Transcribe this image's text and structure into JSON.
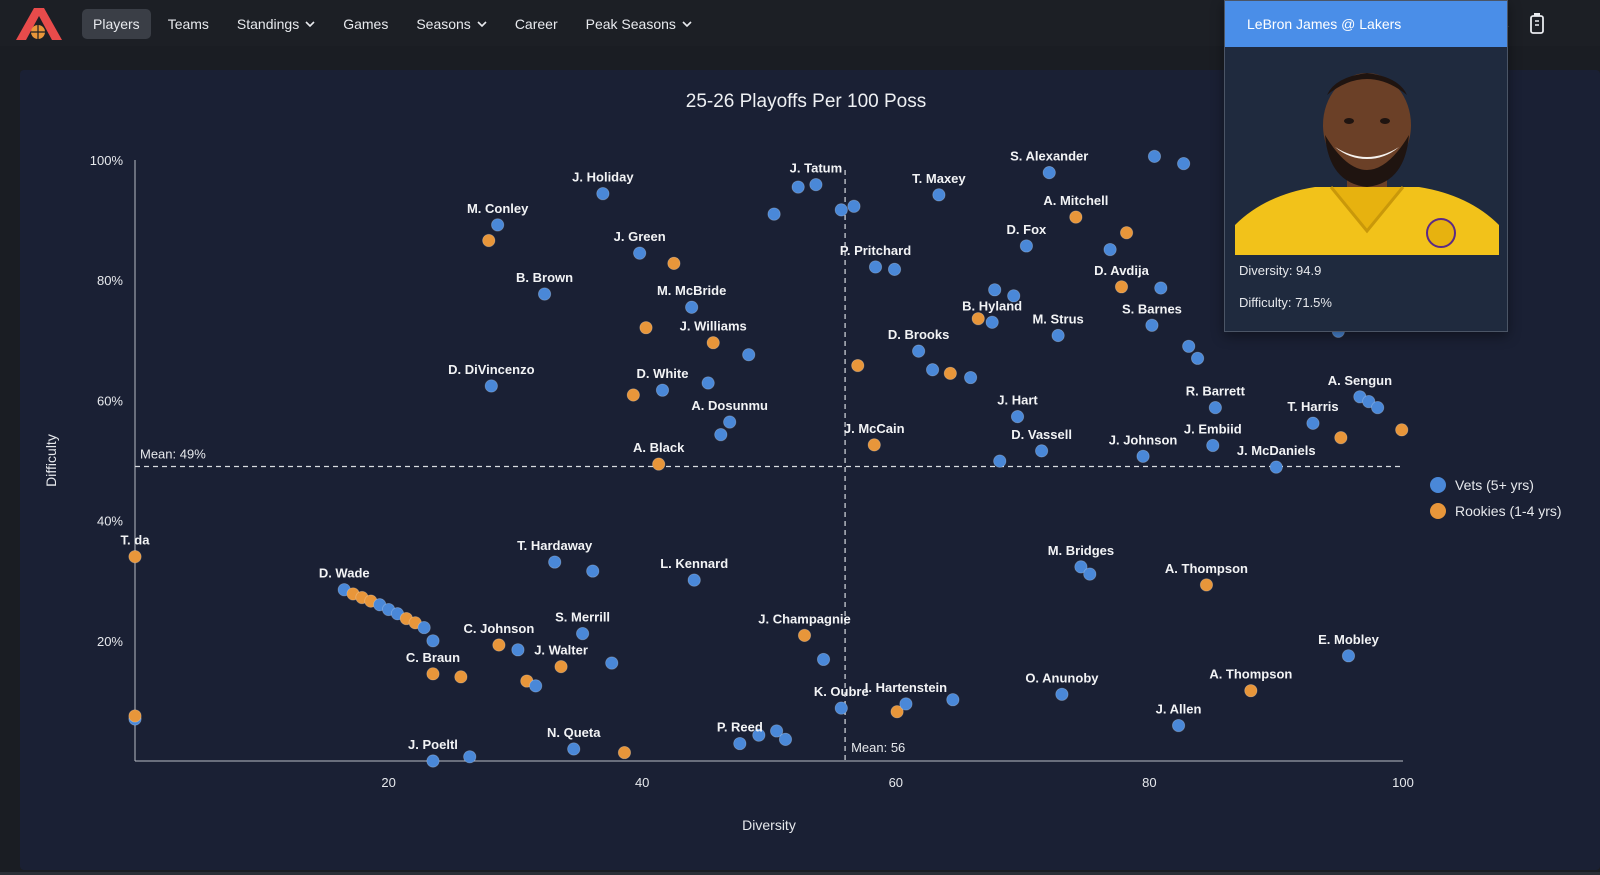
{
  "nav": {
    "items": [
      {
        "label": "Players",
        "active": true,
        "dropdown": false
      },
      {
        "label": "Teams",
        "active": false,
        "dropdown": false
      },
      {
        "label": "Standings",
        "active": false,
        "dropdown": true
      },
      {
        "label": "Games",
        "active": false,
        "dropdown": false
      },
      {
        "label": "Seasons",
        "active": false,
        "dropdown": true
      },
      {
        "label": "Career",
        "active": false,
        "dropdown": false
      },
      {
        "label": "Peak Seasons",
        "active": false,
        "dropdown": true
      }
    ],
    "icons": [
      "logo-icon",
      "moon-icon",
      "battery-icon"
    ]
  },
  "tooltip": {
    "title": "LeBron James @ Lakers",
    "diversity_line": "Diversity: 94.9",
    "difficulty_line": "Difficulty: 71.5%",
    "image_icon": "player-photo"
  },
  "legend": [
    {
      "label": "Vets (5+ yrs)",
      "color": "#4a88d8"
    },
    {
      "label": "Rookies (1-4 yrs)",
      "color": "#e8963a"
    }
  ],
  "chart_data": {
    "type": "scatter",
    "title": "25-26 Playoffs Per 100 Poss",
    "xlabel": "Diversity",
    "ylabel": "Difficulty",
    "xlim": [
      0,
      100
    ],
    "ylim": [
      0,
      100
    ],
    "xticks": [
      20,
      40,
      60,
      80,
      100
    ],
    "yticks": [
      20,
      40,
      60,
      80,
      100
    ],
    "ytick_suffix": "%",
    "mean_x": 56,
    "mean_y": 49,
    "mean_x_label": "Mean: 56",
    "mean_y_label": "Mean: 49%",
    "colors": {
      "vet": "#4a88d8",
      "rookie": "#e8963a"
    },
    "points": [
      {
        "x": 0,
        "y": 34,
        "t": "r",
        "label": "T. da"
      },
      {
        "x": 0,
        "y": 7,
        "t": "v",
        "label": ""
      },
      {
        "x": 0,
        "y": 7.5,
        "t": "r",
        "label": ""
      },
      {
        "x": 16.5,
        "y": 28.5,
        "t": "v",
        "label": "D. Wade"
      },
      {
        "x": 17.2,
        "y": 27.8,
        "t": "r",
        "label": ""
      },
      {
        "x": 17.9,
        "y": 27.2,
        "t": "r",
        "label": ""
      },
      {
        "x": 18.6,
        "y": 26.6,
        "t": "r",
        "label": ""
      },
      {
        "x": 19.3,
        "y": 26.0,
        "t": "v",
        "label": ""
      },
      {
        "x": 20.0,
        "y": 25.2,
        "t": "v",
        "label": ""
      },
      {
        "x": 20.7,
        "y": 24.5,
        "t": "v",
        "label": ""
      },
      {
        "x": 21.4,
        "y": 23.7,
        "t": "r",
        "label": ""
      },
      {
        "x": 22.1,
        "y": 23.0,
        "t": "r",
        "label": ""
      },
      {
        "x": 22.8,
        "y": 22.2,
        "t": "v",
        "label": ""
      },
      {
        "x": 23.5,
        "y": 20.0,
        "t": "v",
        "label": ""
      },
      {
        "x": 23.5,
        "y": 14.5,
        "t": "r",
        "label": "C. Braun"
      },
      {
        "x": 25.7,
        "y": 14.0,
        "t": "r",
        "label": ""
      },
      {
        "x": 28.7,
        "y": 19.3,
        "t": "r",
        "label": "C. Johnson"
      },
      {
        "x": 30.2,
        "y": 18.5,
        "t": "v",
        "label": ""
      },
      {
        "x": 30.9,
        "y": 13.3,
        "t": "r",
        "label": ""
      },
      {
        "x": 31.6,
        "y": 12.5,
        "t": "v",
        "label": ""
      },
      {
        "x": 33.6,
        "y": 15.7,
        "t": "r",
        "label": "J. Walter"
      },
      {
        "x": 35.3,
        "y": 21.2,
        "t": "v",
        "label": "S. Merrill"
      },
      {
        "x": 37.6,
        "y": 16.3,
        "t": "v",
        "label": ""
      },
      {
        "x": 33.1,
        "y": 33.1,
        "t": "v",
        "label": "T. Hardaway"
      },
      {
        "x": 36.1,
        "y": 31.6,
        "t": "v",
        "label": ""
      },
      {
        "x": 44.1,
        "y": 30.1,
        "t": "v",
        "label": "L. Kennard"
      },
      {
        "x": 23.5,
        "y": 0,
        "t": "v",
        "label": "J. Poeltl"
      },
      {
        "x": 26.4,
        "y": 0.7,
        "t": "v",
        "label": ""
      },
      {
        "x": 34.6,
        "y": 2.0,
        "t": "v",
        "label": "N. Queta"
      },
      {
        "x": 38.6,
        "y": 1.4,
        "t": "r",
        "label": ""
      },
      {
        "x": 47.7,
        "y": 2.9,
        "t": "v",
        "label": "P. Reed"
      },
      {
        "x": 49.2,
        "y": 4.3,
        "t": "v",
        "label": ""
      },
      {
        "x": 50.6,
        "y": 5.0,
        "t": "v",
        "label": ""
      },
      {
        "x": 51.3,
        "y": 3.6,
        "t": "v",
        "label": ""
      },
      {
        "x": 52.8,
        "y": 20.9,
        "t": "r",
        "label": "J. Champagnie"
      },
      {
        "x": 54.3,
        "y": 16.9,
        "t": "v",
        "label": ""
      },
      {
        "x": 55.7,
        "y": 8.8,
        "t": "v",
        "label": "K. Oubre"
      },
      {
        "x": 60.1,
        "y": 8.2,
        "t": "r",
        "label": ""
      },
      {
        "x": 60.8,
        "y": 9.5,
        "t": "v",
        "label": "I. Hartenstein"
      },
      {
        "x": 64.5,
        "y": 10.2,
        "t": "v",
        "label": ""
      },
      {
        "x": 73.1,
        "y": 11.1,
        "t": "v",
        "label": "O. Anunoby"
      },
      {
        "x": 82.3,
        "y": 5.9,
        "t": "v",
        "label": "J. Allen"
      },
      {
        "x": 88.0,
        "y": 11.7,
        "t": "r",
        "label": "A. Thompson"
      },
      {
        "x": 95.7,
        "y": 17.5,
        "t": "v",
        "label": "E. Mobley"
      },
      {
        "x": 74.6,
        "y": 32.3,
        "t": "v",
        "label": "M. Bridges"
      },
      {
        "x": 75.3,
        "y": 31.1,
        "t": "v",
        "label": ""
      },
      {
        "x": 84.5,
        "y": 29.3,
        "t": "r",
        "label": "A. Thompson"
      },
      {
        "x": 28.6,
        "y": 89.2,
        "t": "v",
        "label": "M. Conley"
      },
      {
        "x": 27.9,
        "y": 86.6,
        "t": "r",
        "label": ""
      },
      {
        "x": 36.9,
        "y": 94.4,
        "t": "v",
        "label": "J. Holiday"
      },
      {
        "x": 32.3,
        "y": 77.7,
        "t": "v",
        "label": "B. Brown"
      },
      {
        "x": 39.8,
        "y": 84.5,
        "t": "v",
        "label": "J. Green"
      },
      {
        "x": 42.5,
        "y": 82.8,
        "t": "r",
        "label": ""
      },
      {
        "x": 43.9,
        "y": 75.5,
        "t": "v",
        "label": "M. McBride"
      },
      {
        "x": 40.3,
        "y": 72.1,
        "t": "r",
        "label": ""
      },
      {
        "x": 45.6,
        "y": 69.6,
        "t": "r",
        "label": "J. Williams"
      },
      {
        "x": 48.4,
        "y": 67.6,
        "t": "v",
        "label": ""
      },
      {
        "x": 28.1,
        "y": 62.4,
        "t": "v",
        "label": "D. DiVincenzo"
      },
      {
        "x": 39.3,
        "y": 60.9,
        "t": "r",
        "label": ""
      },
      {
        "x": 41.6,
        "y": 61.7,
        "t": "v",
        "label": "D. White"
      },
      {
        "x": 45.2,
        "y": 62.9,
        "t": "v",
        "label": ""
      },
      {
        "x": 46.9,
        "y": 56.4,
        "t": "v",
        "label": "A. Dosunmu"
      },
      {
        "x": 46.2,
        "y": 54.3,
        "t": "v",
        "label": ""
      },
      {
        "x": 41.3,
        "y": 49.4,
        "t": "r",
        "label": "A. Black"
      },
      {
        "x": 50.4,
        "y": 91.0,
        "t": "v",
        "label": ""
      },
      {
        "x": 52.3,
        "y": 95.5,
        "t": "v",
        "label": ""
      },
      {
        "x": 53.7,
        "y": 95.9,
        "t": "v",
        "label": "J. Tatum"
      },
      {
        "x": 55.7,
        "y": 91.7,
        "t": "v",
        "label": ""
      },
      {
        "x": 56.7,
        "y": 92.3,
        "t": "v",
        "label": ""
      },
      {
        "x": 58.4,
        "y": 82.2,
        "t": "v",
        "label": "P. Pritchard"
      },
      {
        "x": 59.9,
        "y": 81.8,
        "t": "v",
        "label": ""
      },
      {
        "x": 63.4,
        "y": 94.2,
        "t": "v",
        "label": "T. Maxey"
      },
      {
        "x": 57.0,
        "y": 65.8,
        "t": "r",
        "label": ""
      },
      {
        "x": 61.8,
        "y": 68.2,
        "t": "v",
        "label": "D. Brooks"
      },
      {
        "x": 62.9,
        "y": 65.1,
        "t": "v",
        "label": ""
      },
      {
        "x": 64.3,
        "y": 64.5,
        "t": "r",
        "label": ""
      },
      {
        "x": 65.9,
        "y": 63.8,
        "t": "v",
        "label": ""
      },
      {
        "x": 58.3,
        "y": 52.6,
        "t": "r",
        "label": "J. McCain"
      },
      {
        "x": 67.6,
        "y": 73.0,
        "t": "v",
        "label": "B. Hyland"
      },
      {
        "x": 67.8,
        "y": 78.4,
        "t": "v",
        "label": ""
      },
      {
        "x": 69.3,
        "y": 77.4,
        "t": "v",
        "label": ""
      },
      {
        "x": 66.5,
        "y": 73.6,
        "t": "r",
        "label": ""
      },
      {
        "x": 70.3,
        "y": 85.7,
        "t": "v",
        "label": "D. Fox"
      },
      {
        "x": 72.1,
        "y": 97.9,
        "t": "v",
        "label": "S. Alexander"
      },
      {
        "x": 72.8,
        "y": 70.8,
        "t": "v",
        "label": "M. Strus"
      },
      {
        "x": 69.6,
        "y": 57.3,
        "t": "v",
        "label": "J. Hart"
      },
      {
        "x": 68.2,
        "y": 49.9,
        "t": "v",
        "label": ""
      },
      {
        "x": 71.5,
        "y": 51.6,
        "t": "v",
        "label": "D. Vassell"
      },
      {
        "x": 74.2,
        "y": 90.5,
        "t": "r",
        "label": "A. Mitchell"
      },
      {
        "x": 78.2,
        "y": 87.9,
        "t": "r",
        "label": ""
      },
      {
        "x": 76.9,
        "y": 85.1,
        "t": "v",
        "label": ""
      },
      {
        "x": 77.8,
        "y": 78.9,
        "t": "r",
        "label": "D. Avdija"
      },
      {
        "x": 80.4,
        "y": 100.6,
        "t": "v",
        "label": ""
      },
      {
        "x": 82.7,
        "y": 99.4,
        "t": "v",
        "label": ""
      },
      {
        "x": 80.9,
        "y": 78.7,
        "t": "v",
        "label": ""
      },
      {
        "x": 80.2,
        "y": 72.5,
        "t": "v",
        "label": "S. Barnes"
      },
      {
        "x": 83.1,
        "y": 69.0,
        "t": "v",
        "label": ""
      },
      {
        "x": 83.8,
        "y": 67.0,
        "t": "v",
        "label": ""
      },
      {
        "x": 79.5,
        "y": 50.7,
        "t": "v",
        "label": "J. Johnson"
      },
      {
        "x": 85.2,
        "y": 58.8,
        "t": "v",
        "label": "R. Barrett"
      },
      {
        "x": 85.0,
        "y": 52.5,
        "t": "v",
        "label": "J. Embiid"
      },
      {
        "x": 90.0,
        "y": 48.9,
        "t": "v",
        "label": "J. McDaniels"
      },
      {
        "x": 94.9,
        "y": 71.5,
        "t": "v",
        "label": ""
      },
      {
        "x": 92.9,
        "y": 56.2,
        "t": "v",
        "label": "T. Harris"
      },
      {
        "x": 95.1,
        "y": 53.8,
        "t": "r",
        "label": ""
      },
      {
        "x": 96.6,
        "y": 60.6,
        "t": "v",
        "label": "A. Sengun"
      },
      {
        "x": 97.3,
        "y": 59.8,
        "t": "v",
        "label": ""
      },
      {
        "x": 98.0,
        "y": 58.8,
        "t": "v",
        "label": ""
      },
      {
        "x": 99.9,
        "y": 55.1,
        "t": "r",
        "label": ""
      }
    ]
  }
}
